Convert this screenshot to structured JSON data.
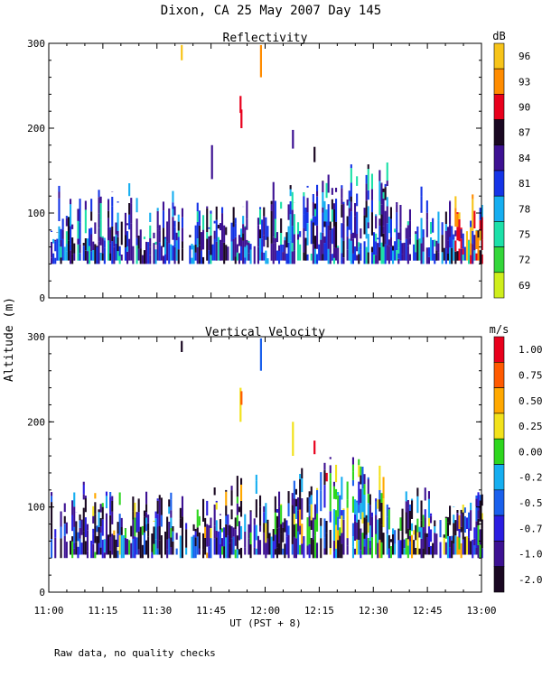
{
  "figure": {
    "title": "Dixon, CA 25 May 2007  Day 145",
    "ylabel": "Altitude (m)",
    "xlabel": "UT  (PST + 8)",
    "footer": "Raw data, no quality checks"
  },
  "chart_data": [
    {
      "type": "heatmap",
      "title": "Reflectivity",
      "xlabel": "UT  (PST + 8)",
      "ylabel": "Altitude (m)",
      "xlim": [
        "11:00",
        "13:00"
      ],
      "x_ticks": [
        "11:00",
        "11:15",
        "11:30",
        "11:45",
        "12:00",
        "12:15",
        "12:30",
        "12:45",
        "13:00"
      ],
      "ylim": [
        0,
        300
      ],
      "y_ticks": [
        0,
        100,
        200,
        300
      ],
      "colorbar": {
        "unit": "dB",
        "labels": [
          "96",
          "93",
          "90",
          "87",
          "84",
          "81",
          "78",
          "75",
          "72",
          "69"
        ],
        "colors": [
          "#f7c41a",
          "#ff8c00",
          "#e8001c",
          "#1a0822",
          "#3d1192",
          "#1534e6",
          "#16aef0",
          "#1ce0a8",
          "#34d63a",
          "#cfee1c"
        ]
      }
    },
    {
      "type": "heatmap",
      "title": "Vertical Velocity",
      "xlabel": "UT  (PST + 8)",
      "ylabel": "Altitude (m)",
      "xlim": [
        "11:00",
        "13:00"
      ],
      "x_ticks": [
        "11:00",
        "11:15",
        "11:30",
        "11:45",
        "12:00",
        "12:15",
        "12:30",
        "12:45",
        "13:00"
      ],
      "ylim": [
        0,
        300
      ],
      "y_ticks": [
        0,
        100,
        200,
        300
      ],
      "colorbar": {
        "unit": "m/s",
        "labels": [
          "1.00",
          "0.75",
          "0.50",
          "0.25",
          "0.00",
          "-0.25",
          "-0.50",
          "-0.75",
          "-1.00",
          "-2.00"
        ],
        "colors": [
          "#e8001c",
          "#ff5a00",
          "#ffa800",
          "#f2e21c",
          "#2ed61e",
          "#16aef0",
          "#1a60ec",
          "#2a1de0",
          "#3d1192",
          "#1a0822"
        ]
      }
    }
  ]
}
